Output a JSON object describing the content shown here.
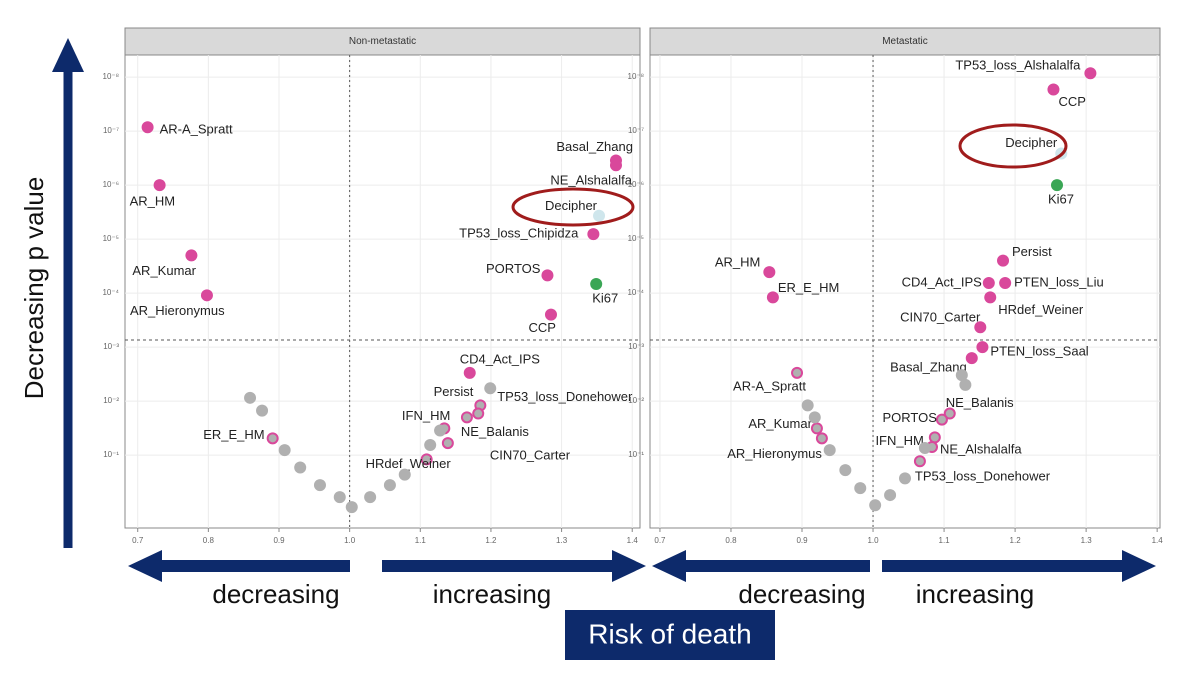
{
  "chart_data": [
    {
      "type": "scatter",
      "title": "Non-metastatic",
      "log_y": true,
      "xlim": [
        0.682,
        1.411
      ],
      "ylim": [
        2.24,
        3.9e-09
      ],
      "xticks": [
        0.7,
        0.8,
        0.9,
        {
          "value": 1,
          "label": "1.0"
        },
        1.1,
        1.2,
        1.3,
        1.4
      ],
      "yticks": [
        {
          "value": 0.1,
          "label": "10⁻¹"
        },
        {
          "value": 0.01,
          "label": "10⁻²"
        },
        {
          "value": 0.001,
          "label": "10⁻³"
        },
        {
          "value": 0.0001,
          "label": "10⁻⁴"
        },
        {
          "value": 1e-05,
          "label": "10⁻⁵"
        },
        {
          "value": 1e-06,
          "label": "10⁻⁶"
        },
        {
          "value": 1e-07,
          "label": "10⁻⁷"
        },
        {
          "value": 1e-08,
          "label": "10⁻⁸"
        }
      ],
      "vline": 1,
      "hline": 0.00074,
      "grid": true,
      "x": [
        0.714,
        0.731,
        0.776,
        0.798,
        1.377,
        1.377,
        1.353,
        1.345,
        1.28,
        1.349,
        1.285,
        1.17,
        1.185,
        1.182,
        1.134,
        1.166,
        1.139,
        1.109,
        0.891,
        0.859,
        0.876,
        0.908,
        0.93,
        0.958,
        0.986,
        1.003,
        1.029,
        1.057,
        1.078,
        1.114,
        1.128,
        1.199
      ],
      "values": [
        8.5e-08,
        1e-06,
        2e-05,
        0.00011,
        3.5e-07,
        4.3e-07,
        3.7e-06,
        8.1e-06,
        4.7e-05,
        6.8e-05,
        0.00025,
        0.003,
        0.012,
        0.017,
        0.032,
        0.02,
        0.06,
        0.12,
        0.049,
        0.0087,
        0.015,
        0.081,
        0.17,
        0.36,
        0.6,
        0.92,
        0.6,
        0.36,
        0.23,
        0.065,
        0.035,
        0.0058
      ],
      "point_labels": [
        "AR-A_Spratt",
        "AR_HM",
        "AR_Kumar",
        "AR_Hieronymus",
        "Basal_Zhang",
        "NE_Alshalalfa",
        "Decipher",
        "TP53_loss_Chipidza",
        "PORTOS",
        "Ki67",
        "CCP",
        "CD4_Act_IPS",
        "Persist",
        "TP53_loss_Donehower",
        "IFN_HM",
        "NE_Balanis",
        "CIN70_Carter",
        "HRdef_Weiner",
        "ER_E_HM",
        null,
        null,
        null,
        null,
        null,
        null,
        null,
        null,
        null,
        null,
        null,
        null,
        null
      ],
      "colors": [
        "#d9489b",
        "#d9489b",
        "#d9489b",
        "#d9489b",
        "#d9489b",
        "#d9489b",
        "#cfe6ec",
        "#d9489b",
        "#d9489b",
        "#3aa655",
        "#d9489b",
        "#d9489b",
        "#b0b0b0",
        "#b0b0b0",
        "#b0b0b0",
        "#b0b0b0",
        "#b0b0b0",
        "#b0b0b0",
        "#b0b0b0",
        "#b0b0b0",
        "#b0b0b0",
        "#b0b0b0",
        "#b0b0b0",
        "#b0b0b0",
        "#b0b0b0",
        "#b0b0b0",
        "#b0b0b0",
        "#b0b0b0",
        "#b0b0b0",
        "#b0b0b0",
        "#b0b0b0",
        "#b0b0b0"
      ]
    },
    {
      "type": "scatter",
      "title": "Metastatic",
      "log_y": true,
      "xlim": [
        0.686,
        1.404
      ],
      "ylim": [
        2.24,
        3.9e-09
      ],
      "xticks": [
        0.7,
        0.8,
        0.9,
        {
          "value": 1,
          "label": "1.0"
        },
        1.1,
        1.2,
        1.3,
        1.4
      ],
      "yticks": [
        {
          "value": 0.1,
          "label": "10⁻¹"
        },
        {
          "value": 0.01,
          "label": "10⁻²"
        },
        {
          "value": 0.001,
          "label": "10⁻³"
        },
        {
          "value": 0.0001,
          "label": "10⁻⁴"
        },
        {
          "value": 1e-05,
          "label": "10⁻⁵"
        },
        {
          "value": 1e-06,
          "label": "10⁻⁶"
        },
        {
          "value": 1e-07,
          "label": "10⁻⁷"
        },
        {
          "value": 1e-08,
          "label": "10⁻⁸"
        }
      ],
      "vline": 1,
      "hline": 0.00074,
      "grid": true,
      "x": [
        1.306,
        1.254,
        1.265,
        1.259,
        1.183,
        1.163,
        1.186,
        1.165,
        1.151,
        1.154,
        1.139,
        0.854,
        0.859,
        0.893,
        1.108,
        1.097,
        1.087,
        1.083,
        1.066,
        0.921,
        0.928,
        1.125,
        1.13,
        0.908,
        0.918,
        0.939,
        0.961,
        0.982,
        1.003,
        1.024,
        1.045,
        1.073
      ],
      "values": [
        8.5e-09,
        1.7e-08,
        2.6e-07,
        1e-06,
        2.5e-05,
        6.5e-05,
        6.5e-05,
        0.00012,
        0.00043,
        0.001,
        0.0016,
        4.1e-05,
        0.00012,
        0.003,
        0.017,
        0.022,
        0.047,
        0.071,
        0.13,
        0.032,
        0.049,
        0.0033,
        0.005,
        0.012,
        0.02,
        0.081,
        0.19,
        0.41,
        0.85,
        0.55,
        0.27,
        0.074
      ],
      "point_labels": [
        "TP53_loss_Alshalalfa",
        "CCP",
        "Decipher",
        "Ki67",
        "Persist",
        "CD4_Act_IPS",
        "PTEN_loss_Liu",
        "HRdef_Weiner",
        "CIN70_Carter",
        "PTEN_loss_Saal",
        "Basal_Zhang",
        "AR_HM",
        "ER_E_HM",
        "AR-A_Spratt",
        "NE_Balanis",
        "PORTOS",
        "IFN_HM",
        "NE_Alshalalfa",
        "TP53_loss_Donehower",
        "AR_Kumar",
        "AR_Hieronymus",
        null,
        null,
        null,
        null,
        null,
        null,
        null,
        null,
        null,
        null,
        null
      ],
      "colors": [
        "#d9489b",
        "#d9489b",
        "#cfe6ec",
        "#3aa655",
        "#d9489b",
        "#d9489b",
        "#d9489b",
        "#d9489b",
        "#d9489b",
        "#d9489b",
        "#d9489b",
        "#d9489b",
        "#d9489b",
        "#b0b0b0",
        "#b0b0b0",
        "#b0b0b0",
        "#b0b0b0",
        "#b0b0b0",
        "#b0b0b0",
        "#b0b0b0",
        "#b0b0b0",
        "#b0b0b0",
        "#b0b0b0",
        "#b0b0b0",
        "#b0b0b0",
        "#b0b0b0",
        "#b0b0b0",
        "#b0b0b0",
        "#b0b0b0",
        "#b0b0b0",
        "#b0b0b0",
        "#b0b0b0"
      ]
    }
  ],
  "annotations": {
    "y_axis_label": "Decreasing p value",
    "direction_labels": [
      "decreasing",
      "increasing",
      "decreasing",
      "increasing"
    ],
    "x_axis_label": "Risk of death"
  }
}
